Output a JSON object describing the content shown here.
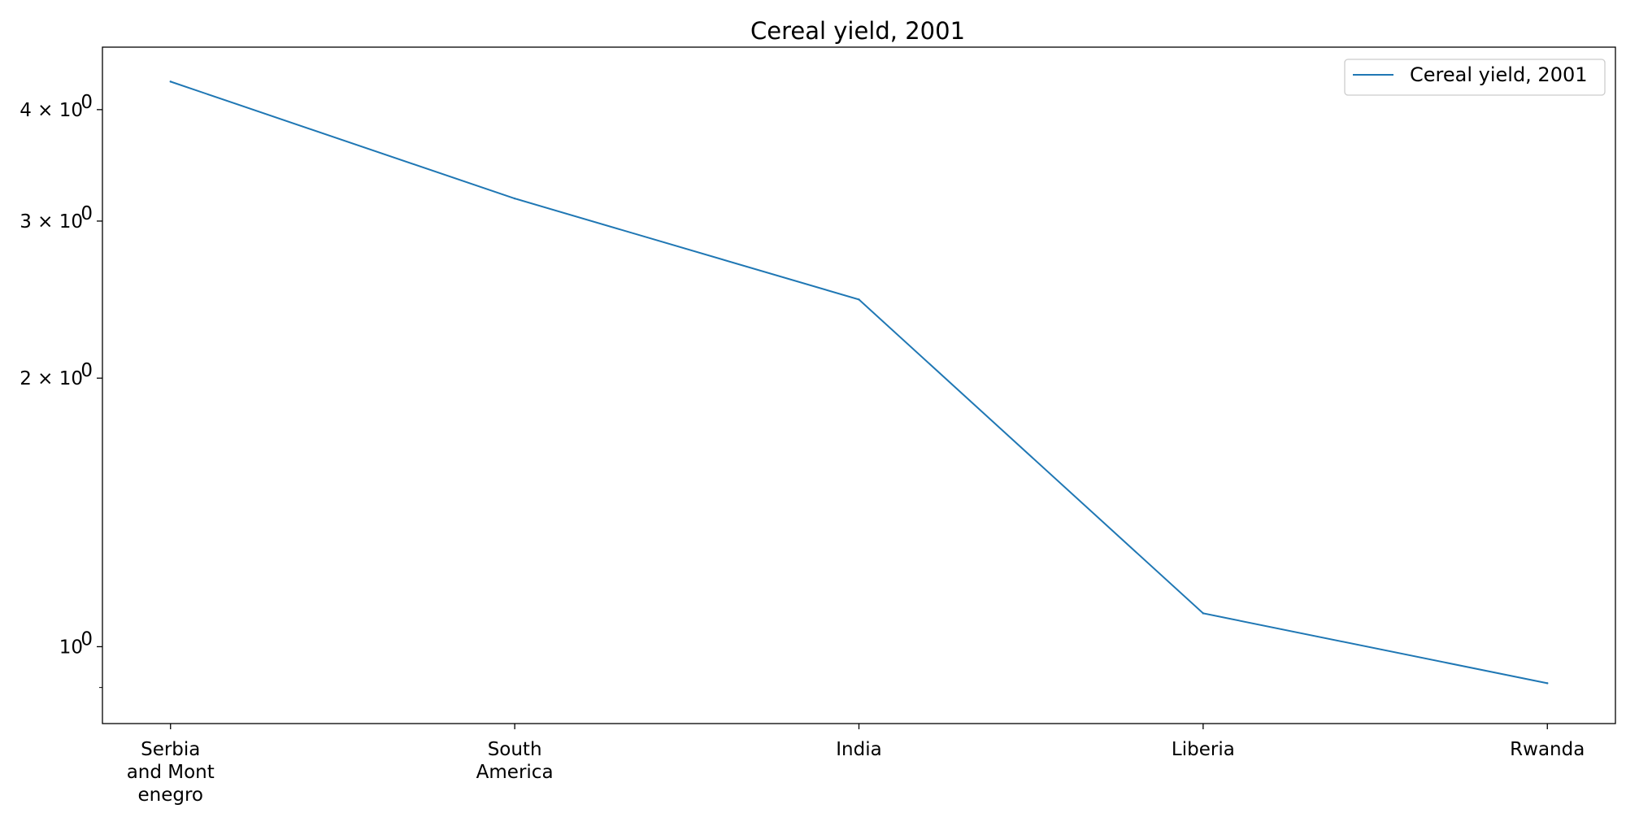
{
  "chart_data": {
    "type": "line",
    "title": "Cereal yield, 2001",
    "xlabel": "",
    "ylabel": "",
    "categories": [
      "Serbia and Montenegro",
      "South America",
      "India",
      "Liberia",
      "Rwanda"
    ],
    "category_labels": [
      [
        "Serbia",
        "and Mont",
        "enegro"
      ],
      [
        "South",
        "America"
      ],
      [
        "India"
      ],
      [
        "Liberia"
      ],
      [
        "Rwanda"
      ]
    ],
    "series": [
      {
        "name": "Cereal yield, 2001",
        "values": [
          4.3,
          3.18,
          2.45,
          1.09,
          0.91
        ],
        "color": "#1f77b4"
      }
    ],
    "y_scale": "log",
    "ylim": [
      0.82,
      4.7
    ],
    "yticks": [
      {
        "value": 1,
        "base": "10",
        "exp": "0"
      },
      {
        "value": 2,
        "base": "2 × 10",
        "exp": "0"
      },
      {
        "value": 3,
        "base": "3 × 10",
        "exp": "0"
      },
      {
        "value": 4,
        "base": "4 × 10",
        "exp": "0"
      }
    ],
    "grid": false,
    "legend_position": "top-right"
  }
}
